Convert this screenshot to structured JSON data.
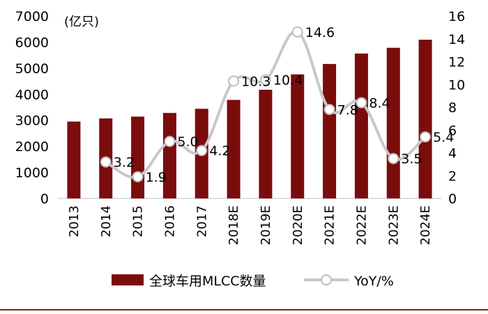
{
  "chart_data": {
    "type": "bar+line",
    "categories": [
      "2013",
      "2014",
      "2015",
      "2016",
      "2017",
      "2018E",
      "2019E",
      "2020E",
      "2021E",
      "2022E",
      "2023E",
      "2024E"
    ],
    "series": [
      {
        "name": "全球车用MLCC数量",
        "type": "bar",
        "axis": "left",
        "values": [
          2950,
          3070,
          3140,
          3280,
          3440,
          3780,
          4170,
          4760,
          5160,
          5560,
          5780,
          6090
        ]
      },
      {
        "name": "YoY/%",
        "type": "line",
        "axis": "right",
        "values": [
          null,
          3.2,
          1.9,
          5.0,
          4.2,
          10.3,
          10.4,
          14.6,
          7.8,
          8.4,
          3.5,
          5.4
        ]
      }
    ],
    "y_left": {
      "min": 0,
      "max": 7000,
      "ticks": [
        0,
        1000,
        2000,
        3000,
        4000,
        5000,
        6000,
        7000
      ],
      "unit_label": "(亿只)"
    },
    "y_right": {
      "min": 0,
      "max": 16,
      "ticks": [
        0,
        2,
        4,
        6,
        8,
        10,
        12,
        14,
        16
      ]
    },
    "data_labels": [
      "",
      "3.2",
      "1.9",
      "5.0",
      "4.2",
      "10.3",
      "10.4",
      "14.6",
      "7.8",
      "8.4",
      "3.5",
      "5.4"
    ],
    "colors": {
      "bar": "#7b0c0c",
      "line": "#c8c8c8",
      "marker_fill": "#ffffff",
      "marker_stroke": "#bdbdbd",
      "footer": "#8b1a1a"
    },
    "legend_position": "bottom"
  }
}
